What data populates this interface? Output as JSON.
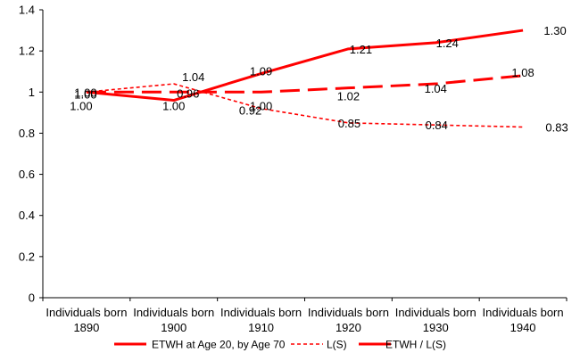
{
  "chart_data": {
    "type": "line",
    "categories": [
      "Individuals born 1890",
      "Individuals born 1900",
      "Individuals born 1910",
      "Individuals born 1920",
      "Individuals born 1930",
      "Individuals born 1940"
    ],
    "y_ticks": [
      "0",
      "0.2",
      "0.4",
      "0.6",
      "0.8",
      "1",
      "1.2",
      "1.4"
    ],
    "ylim": [
      0,
      1.4
    ],
    "grid": false,
    "legend_position": "bottom",
    "series": [
      {
        "name": "ETWH at Age 20, by Age 70",
        "style": "long-dash",
        "color": "#ff0000",
        "values": [
          1.0,
          1.0,
          1.0,
          1.02,
          1.04,
          1.08
        ],
        "labels": [
          "1.00",
          "1.00",
          "1.00",
          "1.02",
          "1.04",
          "1.08"
        ]
      },
      {
        "name": "L(S)",
        "style": "short-dash",
        "color": "#ff0000",
        "values": [
          1.0,
          1.04,
          0.92,
          0.85,
          0.84,
          0.83
        ],
        "labels": [
          "1.00",
          "1.04",
          "0.92",
          "0.85",
          "0.84",
          "0.83"
        ]
      },
      {
        "name": "ETWH / L(S)",
        "style": "solid",
        "color": "#ff0000",
        "values": [
          1.0,
          0.96,
          1.09,
          1.21,
          1.24,
          1.3
        ],
        "labels": [
          "1.00",
          "0.96",
          "1.09",
          "1.21",
          "1.24",
          "1.30"
        ]
      }
    ]
  }
}
